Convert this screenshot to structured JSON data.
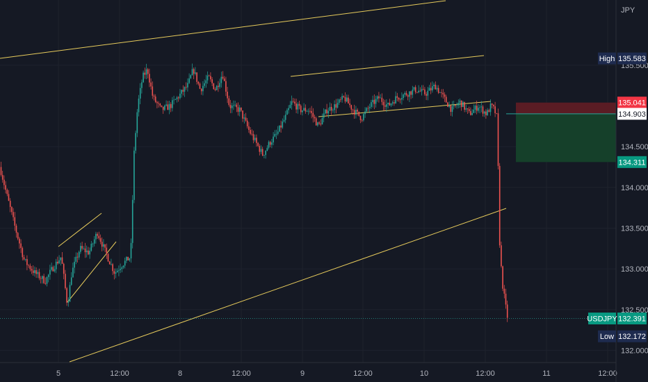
{
  "chart_data": {
    "type": "candlestick",
    "symbol": "USDJPY",
    "currency": "JPY",
    "ylim": [
      131.85,
      136.3
    ],
    "x_ticks": [
      "5",
      "12:00",
      "8",
      "12:00",
      "9",
      "12:00",
      "10",
      "12:00",
      "11",
      "12:00"
    ],
    "y_ticks": [
      "132.000",
      "132.500",
      "133.000",
      "133.500",
      "134.000",
      "134.500",
      "135.500"
    ],
    "high": {
      "label": "High",
      "value": "135.583"
    },
    "low": {
      "label": "Low",
      "value": "132.172"
    },
    "last": {
      "label": "USDJPY",
      "value": "132.391"
    },
    "stop_loss": {
      "value": "135.041"
    },
    "entry": {
      "value": "134.903"
    },
    "take_profit": {
      "value": "134.311"
    },
    "path": [
      [
        0,
        134.25
      ],
      [
        10,
        133.9
      ],
      [
        22,
        133.5
      ],
      [
        35,
        133.1
      ],
      [
        50,
        132.95
      ],
      [
        65,
        132.85
      ],
      [
        75,
        133.0
      ],
      [
        88,
        133.15
      ],
      [
        97,
        132.55
      ],
      [
        103,
        132.95
      ],
      [
        115,
        133.25
      ],
      [
        128,
        133.2
      ],
      [
        140,
        133.45
      ],
      [
        152,
        133.2
      ],
      [
        165,
        132.95
      ],
      [
        175,
        133.05
      ],
      [
        188,
        133.15
      ],
      [
        193,
        134.45
      ],
      [
        198,
        135.0
      ],
      [
        205,
        135.35
      ],
      [
        212,
        135.45
      ],
      [
        220,
        135.1
      ],
      [
        232,
        134.95
      ],
      [
        245,
        135.0
      ],
      [
        260,
        135.15
      ],
      [
        270,
        135.25
      ],
      [
        278,
        135.45
      ],
      [
        288,
        135.2
      ],
      [
        300,
        135.35
      ],
      [
        310,
        135.2
      ],
      [
        320,
        135.4
      ],
      [
        330,
        135.0
      ],
      [
        345,
        134.95
      ],
      [
        358,
        134.7
      ],
      [
        368,
        134.55
      ],
      [
        378,
        134.4
      ],
      [
        388,
        134.55
      ],
      [
        398,
        134.65
      ],
      [
        410,
        134.85
      ],
      [
        420,
        135.05
      ],
      [
        432,
        134.95
      ],
      [
        445,
        134.95
      ],
      [
        458,
        134.75
      ],
      [
        470,
        134.95
      ],
      [
        482,
        135.0
      ],
      [
        495,
        135.1
      ],
      [
        508,
        134.95
      ],
      [
        520,
        134.85
      ],
      [
        532,
        135.0
      ],
      [
        545,
        135.1
      ],
      [
        558,
        135.0
      ],
      [
        570,
        135.1
      ],
      [
        585,
        135.15
      ],
      [
        598,
        135.2
      ],
      [
        612,
        135.15
      ],
      [
        626,
        135.25
      ],
      [
        638,
        135.1
      ],
      [
        650,
        134.95
      ],
      [
        662,
        135.05
      ],
      [
        675,
        134.9
      ],
      [
        688,
        135.0
      ],
      [
        700,
        134.9
      ],
      [
        706,
        135.0
      ],
      [
        711,
        134.95
      ],
      [
        715,
        134.85
      ],
      [
        719,
        133.2
      ],
      [
        723,
        132.8
      ],
      [
        727,
        132.55
      ],
      [
        731,
        132.35
      ]
    ]
  }
}
